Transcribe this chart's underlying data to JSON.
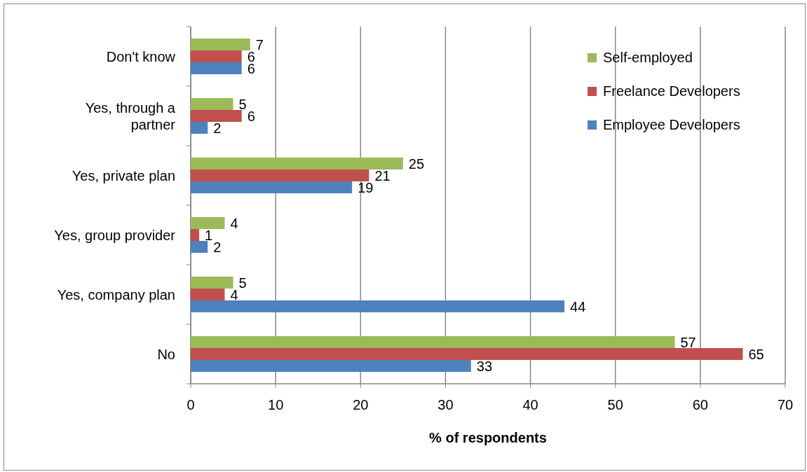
{
  "chart_data": {
    "type": "bar",
    "orientation": "horizontal",
    "xlabel": "% of respondents",
    "categories": [
      "Don't know",
      "Yes, through a partner",
      "Yes, private plan",
      "Yes, group provider",
      "Yes, company plan",
      "No"
    ],
    "series": [
      {
        "name": "Self-employed",
        "color": "#9bbb59",
        "values": [
          7,
          5,
          25,
          4,
          5,
          57
        ]
      },
      {
        "name": "Freelance Developers",
        "color": "#c0504d",
        "values": [
          6,
          6,
          21,
          1,
          4,
          65
        ]
      },
      {
        "name": "Employee Developers",
        "color": "#4f81bd",
        "values": [
          6,
          2,
          19,
          2,
          44,
          33
        ]
      }
    ],
    "xlim": [
      0,
      70
    ],
    "xticks": [
      0,
      10,
      20,
      30,
      40,
      50,
      60,
      70
    ],
    "grid": "x",
    "legend": "top right",
    "data_labels": true
  }
}
